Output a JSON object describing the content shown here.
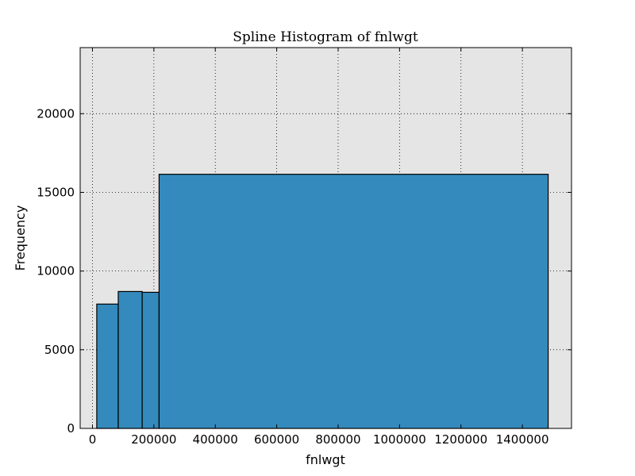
{
  "chart_data": {
    "type": "bar",
    "title": "Spline Histogram of fnlwgt",
    "xlabel": "fnlwgt",
    "ylabel": "Frequency",
    "xlim": [
      -40000,
      1560000
    ],
    "ylim": [
      0,
      24200
    ],
    "xticks": [
      0,
      200000,
      400000,
      600000,
      800000,
      1000000,
      1200000,
      1400000
    ],
    "xtick_labels": [
      "0",
      "200000",
      "400000",
      "600000",
      "800000",
      "1000000",
      "1200000",
      "1400000"
    ],
    "yticks": [
      0,
      5000,
      10000,
      15000,
      20000
    ],
    "ytick_labels": [
      "0",
      "5000",
      "10000",
      "15000",
      "20000"
    ],
    "grid": true,
    "bins": [
      {
        "x0": 14000,
        "x1": 84000,
        "value": 7900
      },
      {
        "x0": 84000,
        "x1": 162000,
        "value": 8700
      },
      {
        "x0": 162000,
        "x1": 217000,
        "value": 8650
      },
      {
        "x0": 217000,
        "x1": 1484000,
        "value": 16150
      }
    ],
    "colors": {
      "bar_fill": "#348abd",
      "bar_edge": "#000000",
      "plot_background": "#e5e5e5",
      "grid": "#000000"
    }
  }
}
